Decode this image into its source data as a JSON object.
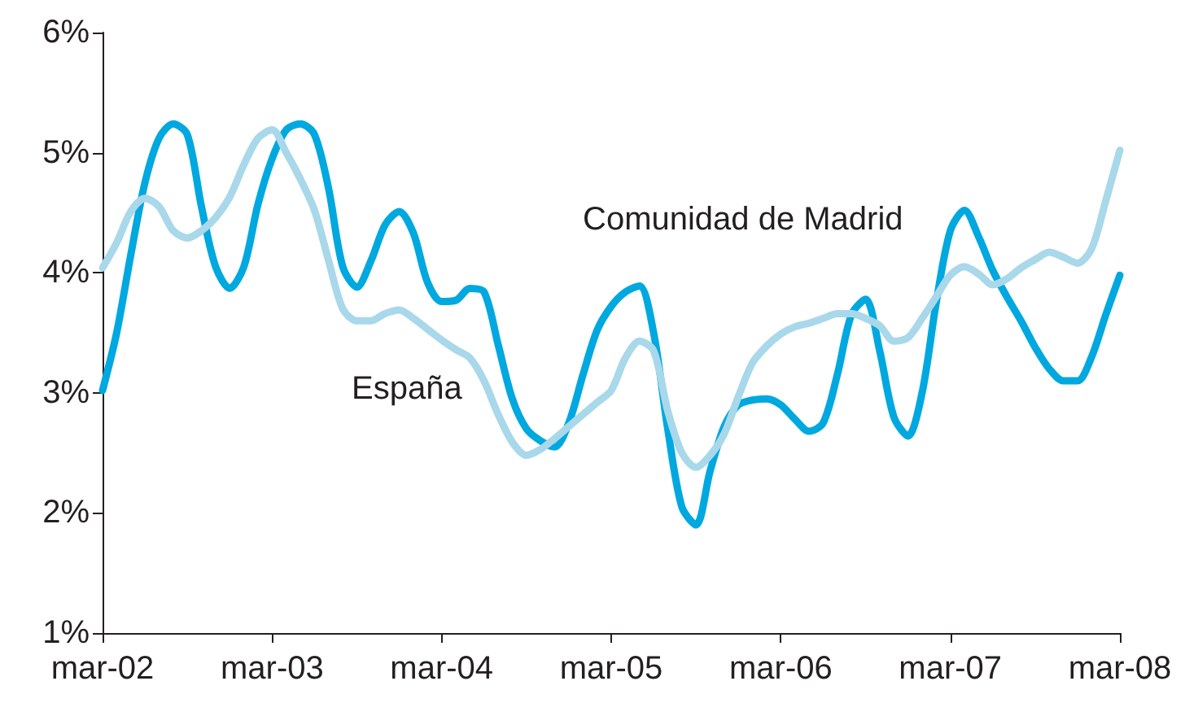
{
  "chart_data": {
    "type": "line",
    "categories": [
      "mar-02",
      null,
      null,
      null,
      null,
      null,
      null,
      null,
      null,
      null,
      null,
      null,
      "mar-03",
      null,
      null,
      null,
      null,
      null,
      null,
      null,
      null,
      null,
      null,
      null,
      "mar-04",
      null,
      null,
      null,
      null,
      null,
      null,
      null,
      null,
      null,
      null,
      null,
      "mar-05",
      null,
      null,
      null,
      null,
      null,
      null,
      null,
      null,
      null,
      null,
      null,
      "mar-06",
      null,
      null,
      null,
      null,
      null,
      null,
      null,
      null,
      null,
      null,
      null,
      "mar-07",
      null,
      null,
      null,
      null,
      null,
      null,
      null,
      null,
      null,
      null,
      null,
      "mar-08"
    ],
    "series": [
      {
        "name": "Comunidad de Madrid",
        "color": "#00a8e0",
        "values": [
          3.02,
          3.5,
          4.15,
          4.75,
          5.12,
          5.24,
          5.15,
          4.55,
          4.05,
          3.87,
          4.05,
          4.57,
          4.95,
          5.19,
          5.24,
          5.15,
          4.7,
          4.05,
          3.88,
          4.1,
          4.4,
          4.51,
          4.33,
          3.92,
          3.76,
          3.77,
          3.87,
          3.84,
          3.4,
          2.95,
          2.7,
          2.6,
          2.55,
          2.75,
          3.15,
          3.52,
          3.72,
          3.84,
          3.89,
          3.5,
          2.7,
          2.05,
          1.9,
          2.35,
          2.72,
          2.9,
          2.94,
          2.95,
          2.9,
          2.78,
          2.68,
          2.75,
          3.15,
          3.65,
          3.78,
          3.35,
          2.8,
          2.64,
          3.0,
          3.75,
          4.35,
          4.52,
          4.3,
          4.02,
          3.8,
          3.6,
          3.38,
          3.2,
          3.1,
          3.1,
          3.3,
          3.65,
          3.98
        ]
      },
      {
        "name": "España",
        "color": "#a8d8ea",
        "values": [
          4.04,
          4.25,
          4.51,
          4.62,
          4.55,
          4.35,
          4.29,
          4.35,
          4.46,
          4.63,
          4.9,
          5.12,
          5.19,
          5.0,
          4.78,
          4.52,
          4.1,
          3.7,
          3.6,
          3.6,
          3.66,
          3.69,
          3.62,
          3.53,
          3.44,
          3.36,
          3.29,
          3.1,
          2.82,
          2.59,
          2.48,
          2.53,
          2.62,
          2.72,
          2.82,
          2.92,
          3.02,
          3.29,
          3.43,
          3.35,
          2.85,
          2.5,
          2.38,
          2.48,
          2.66,
          2.97,
          3.25,
          3.39,
          3.49,
          3.55,
          3.58,
          3.62,
          3.66,
          3.66,
          3.62,
          3.56,
          3.43,
          3.46,
          3.62,
          3.8,
          3.98,
          4.05,
          3.99,
          3.9,
          3.95,
          4.04,
          4.11,
          4.17,
          4.13,
          4.08,
          4.2,
          4.6,
          5.02
        ]
      }
    ],
    "ylim": [
      1,
      6
    ],
    "yticks": [
      {
        "value": 1,
        "label": "1%"
      },
      {
        "value": 2,
        "label": "2%"
      },
      {
        "value": 3,
        "label": "3%"
      },
      {
        "value": 4,
        "label": "4%"
      },
      {
        "value": 5,
        "label": "5%"
      },
      {
        "value": 6,
        "label": "6%"
      }
    ],
    "grid": false,
    "legend": false,
    "marker": "none",
    "line_style": "solid"
  }
}
